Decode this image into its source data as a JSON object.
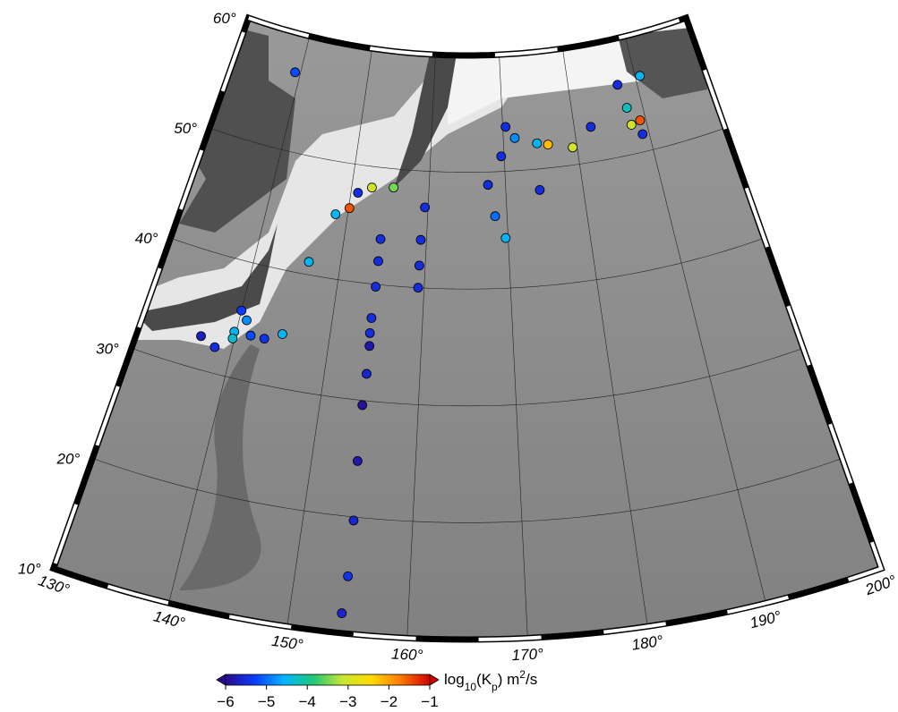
{
  "map": {
    "type": "point-map",
    "lat_ticks": [
      {
        "value": 60,
        "label": "60°"
      },
      {
        "value": 50,
        "label": "50°"
      },
      {
        "value": 40,
        "label": "40°"
      },
      {
        "value": 30,
        "label": "30°"
      },
      {
        "value": 20,
        "label": "20°"
      },
      {
        "value": 10,
        "label": "10°"
      }
    ],
    "lon_ticks": [
      {
        "value": 130,
        "label": "130°"
      },
      {
        "value": 140,
        "label": "140°"
      },
      {
        "value": 150,
        "label": "150°"
      },
      {
        "value": 160,
        "label": "160°"
      },
      {
        "value": 170,
        "label": "170°"
      },
      {
        "value": 180,
        "label": "180°"
      },
      {
        "value": 190,
        "label": "190°"
      },
      {
        "value": 200,
        "label": "200°"
      }
    ],
    "grid": true,
    "points": [
      {
        "lon": 139.2,
        "lat": 56.7,
        "value": -5.2
      },
      {
        "lon": 150.9,
        "lat": 47.6,
        "value": -5.5
      },
      {
        "lon": 150.1,
        "lat": 46.2,
        "value": -1.5
      },
      {
        "lon": 152.6,
        "lat": 48.2,
        "value": -3.0
      },
      {
        "lon": 155.4,
        "lat": 48.4,
        "value": -3.5
      },
      {
        "lon": 148.5,
        "lat": 45.5,
        "value": -4.5
      },
      {
        "lon": 146.3,
        "lat": 41.1,
        "value": -4.5
      },
      {
        "lon": 159.6,
        "lat": 46.9,
        "value": -5.5
      },
      {
        "lon": 159.3,
        "lat": 44.1,
        "value": -5.5
      },
      {
        "lon": 154.4,
        "lat": 43.9,
        "value": -5.5
      },
      {
        "lon": 154.4,
        "lat": 42.0,
        "value": -5.5
      },
      {
        "lon": 159.3,
        "lat": 41.9,
        "value": -5.5
      },
      {
        "lon": 154.4,
        "lat": 39.8,
        "value": -5.5
      },
      {
        "lon": 159.3,
        "lat": 40.0,
        "value": -5.5
      },
      {
        "lon": 154.3,
        "lat": 37.1,
        "value": -5.5
      },
      {
        "lon": 154.3,
        "lat": 35.8,
        "value": -5.5
      },
      {
        "lon": 154.4,
        "lat": 34.7,
        "value": -5.8
      },
      {
        "lon": 154.4,
        "lat": 32.3,
        "value": -5.6
      },
      {
        "lon": 154.3,
        "lat": 29.6,
        "value": -5.9
      },
      {
        "lon": 154.4,
        "lat": 24.8,
        "value": -5.8
      },
      {
        "lon": 154.6,
        "lat": 19.7,
        "value": -5.6
      },
      {
        "lon": 154.6,
        "lat": 14.9,
        "value": -5.4
      },
      {
        "lon": 154.4,
        "lat": 11.7,
        "value": -5.6
      },
      {
        "lon": 136.5,
        "lat": 32.8,
        "value": -5.7
      },
      {
        "lon": 138.2,
        "lat": 32.2,
        "value": -5.5
      },
      {
        "lon": 139.8,
        "lat": 33.9,
        "value": -4.5
      },
      {
        "lon": 140.8,
        "lat": 35.1,
        "value": -4.8
      },
      {
        "lon": 141.6,
        "lat": 33.9,
        "value": -5.2
      },
      {
        "lon": 143.1,
        "lat": 33.9,
        "value": -5.4
      },
      {
        "lon": 140.0,
        "lat": 35.8,
        "value": -5.3
      },
      {
        "lon": 144.9,
        "lat": 34.6,
        "value": -4.5
      },
      {
        "lon": 139.8,
        "lat": 33.3,
        "value": -4.3
      },
      {
        "lon": 170.4,
        "lat": 53.8,
        "value": -5.5
      },
      {
        "lon": 169.6,
        "lat": 51.3,
        "value": -5.5
      },
      {
        "lon": 167.7,
        "lat": 48.9,
        "value": -5.5
      },
      {
        "lon": 168.5,
        "lat": 46.2,
        "value": -5.0
      },
      {
        "lon": 169.7,
        "lat": 44.3,
        "value": -4.5
      },
      {
        "lon": 174.6,
        "lat": 52.2,
        "value": -4.5
      },
      {
        "lon": 176.1,
        "lat": 52.0,
        "value": -2.2
      },
      {
        "lon": 179.4,
        "lat": 51.5,
        "value": -3.0
      },
      {
        "lon": 182.3,
        "lat": 53.0,
        "value": -5.5
      },
      {
        "lon": 174.4,
        "lat": 48.2,
        "value": -5.5
      },
      {
        "lon": 187.2,
        "lat": 56.1,
        "value": -5.5
      },
      {
        "lon": 190.7,
        "lat": 56.4,
        "value": -4.5
      },
      {
        "lon": 189.2,
        "lat": 52.7,
        "value": -1.5
      },
      {
        "lon": 187.9,
        "lat": 52.5,
        "value": -3.0
      },
      {
        "lon": 187.8,
        "lat": 54.0,
        "value": -4.2
      },
      {
        "lon": 189.1,
        "lat": 51.5,
        "value": -5.5
      },
      {
        "lon": 171.6,
        "lat": 52.8,
        "value": -4.8
      }
    ],
    "colorbar": {
      "colors": [
        "#2a0a8c",
        "#0a3cff",
        "#00b4ff",
        "#1ec878",
        "#c8e632",
        "#ffdc00",
        "#ff7800",
        "#d20000"
      ],
      "ticks": [
        {
          "value": -6,
          "label": "−6"
        },
        {
          "value": -5,
          "label": "−5"
        },
        {
          "value": -4,
          "label": "−4"
        },
        {
          "value": -3,
          "label": "−3"
        },
        {
          "value": -2,
          "label": "−2"
        },
        {
          "value": -1,
          "label": "−1"
        }
      ],
      "label_parts": [
        {
          "text": "log"
        },
        {
          "text": "10",
          "style": "sub"
        },
        {
          "text": "(K"
        },
        {
          "text": "p",
          "style": "sub"
        },
        {
          "text": ") m"
        },
        {
          "text": "2",
          "style": "sup"
        },
        {
          "text": "/s"
        }
      ]
    }
  }
}
